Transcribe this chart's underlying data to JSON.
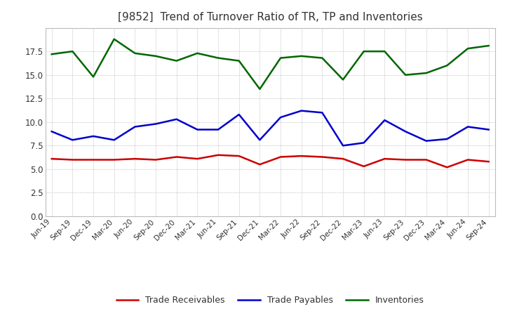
{
  "title": "[9852]  Trend of Turnover Ratio of TR, TP and Inventories",
  "title_fontsize": 11,
  "background_color": "#ffffff",
  "grid_color": "#aaaaaa",
  "xlabels": [
    "Jun-19",
    "Sep-19",
    "Dec-19",
    "Mar-20",
    "Jun-20",
    "Sep-20",
    "Dec-20",
    "Mar-21",
    "Jun-21",
    "Sep-21",
    "Dec-21",
    "Mar-22",
    "Jun-22",
    "Sep-22",
    "Dec-22",
    "Mar-23",
    "Jun-23",
    "Sep-23",
    "Dec-23",
    "Mar-24",
    "Jun-24",
    "Sep-24"
  ],
  "trade_receivables": [
    6.1,
    6.0,
    6.0,
    6.0,
    6.1,
    6.0,
    6.3,
    6.1,
    6.5,
    6.4,
    5.5,
    6.3,
    6.4,
    6.3,
    6.1,
    5.3,
    6.1,
    6.0,
    6.0,
    5.2,
    6.0,
    5.8
  ],
  "trade_payables": [
    9.0,
    8.1,
    8.5,
    8.1,
    9.5,
    9.8,
    10.3,
    9.2,
    9.2,
    10.8,
    8.1,
    10.5,
    11.2,
    11.0,
    7.5,
    7.8,
    10.2,
    9.0,
    8.0,
    8.2,
    9.5,
    9.2
  ],
  "inventories": [
    17.2,
    17.5,
    14.8,
    18.8,
    17.3,
    17.0,
    16.5,
    17.3,
    16.8,
    16.5,
    13.5,
    16.8,
    17.0,
    16.8,
    14.5,
    17.5,
    17.5,
    15.0,
    15.2,
    16.0,
    17.8,
    18.1
  ],
  "tr_color": "#cc0000",
  "tp_color": "#0000cc",
  "inv_color": "#006600",
  "ylim": [
    0.0,
    20.0
  ],
  "yticks": [
    0.0,
    2.5,
    5.0,
    7.5,
    10.0,
    12.5,
    15.0,
    17.5
  ],
  "legend_labels": [
    "Trade Receivables",
    "Trade Payables",
    "Inventories"
  ]
}
